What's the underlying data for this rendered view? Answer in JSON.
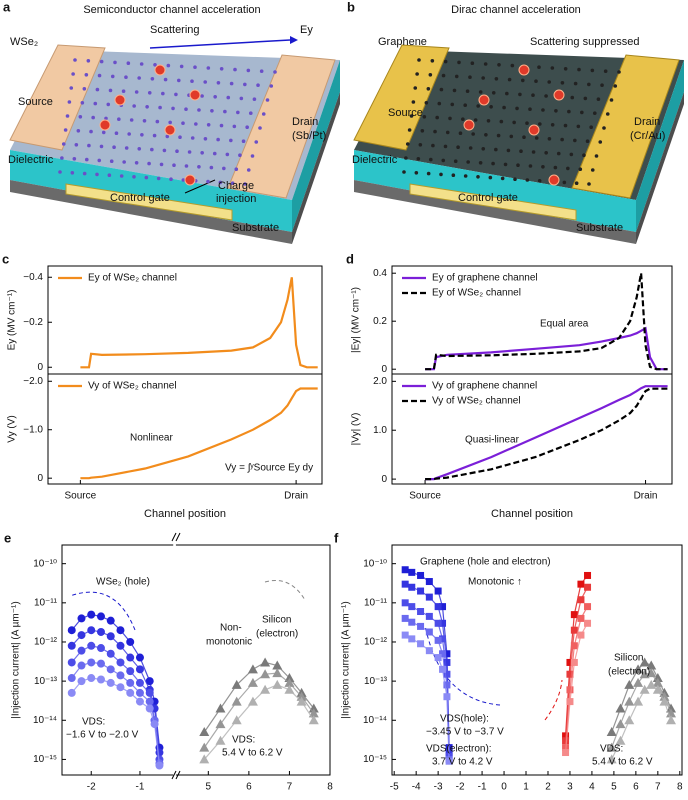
{
  "diagrams": [
    {
      "letter": "a",
      "title": "Semiconductor channel acceleration",
      "labels": [
        "WSe₂",
        "Scattering",
        "Ey",
        "Source",
        "Drain",
        "(Sb/Pt)",
        "Dielectric",
        "Charge",
        "injection",
        "Control gate",
        "Substrate"
      ]
    },
    {
      "letter": "b",
      "title": "Dirac channel acceleration",
      "labels": [
        "Graphene",
        "Scattering suppressed",
        "Source",
        "Drain",
        "(Cr/Au)",
        "Dielectric",
        "Control gate",
        "Substrate"
      ]
    }
  ],
  "chart_data": [
    {
      "type": "line",
      "letter": "c",
      "ylabel": "Ey (MV cm⁻¹)",
      "legend": "top-left",
      "x": [
        0,
        0.02,
        0.04,
        0.05,
        0.1,
        0.3,
        0.5,
        0.7,
        0.8,
        0.88,
        0.93,
        0.96,
        0.98,
        1.0,
        1.02,
        1.05,
        1.1
      ],
      "xlim": [
        -0.15,
        1.12
      ],
      "ylim": [
        0.03,
        -0.45
      ],
      "yticks": [
        0,
        {
          "value": -0.2,
          "label": "−0.2"
        },
        {
          "value": -0.4,
          "label": "−0.4"
        }
      ],
      "series": [
        {
          "name": "Ey of WSe₂ channel",
          "color": "#f28c1c",
          "values": [
            0,
            0,
            0,
            -0.06,
            -0.055,
            -0.058,
            -0.064,
            -0.074,
            -0.088,
            -0.13,
            -0.2,
            -0.3,
            -0.4,
            -0.1,
            -0.01,
            0,
            0
          ]
        }
      ]
    },
    {
      "type": "line",
      "ylabel": "Vy (V)",
      "xlabel": "Channel position",
      "legend": "top-left",
      "x": [
        0,
        0.02,
        0.04,
        0.05,
        0.1,
        0.3,
        0.5,
        0.7,
        0.8,
        0.88,
        0.93,
        0.96,
        0.98,
        1.0,
        1.02,
        1.05,
        1.1
      ],
      "xlim": [
        -0.15,
        1.12
      ],
      "xticks": [
        {
          "value": 0,
          "label": "Source"
        },
        {
          "value": 1,
          "label": "Drain"
        }
      ],
      "ylim": [
        0.12,
        -2.15
      ],
      "yticks": [
        0,
        {
          "value": -1,
          "label": "−1.0"
        },
        {
          "value": -2,
          "label": "−2.0"
        }
      ],
      "annotations": [
        "Nonlinear",
        "Vy = ∫ʸSource Ey dy"
      ],
      "series": [
        {
          "name": "Vy of WSe₂ channel",
          "color": "#f28c1c",
          "values": [
            0,
            0,
            0,
            -0.01,
            -0.03,
            -0.2,
            -0.45,
            -0.8,
            -1.0,
            -1.2,
            -1.35,
            -1.5,
            -1.65,
            -1.8,
            -1.85,
            -1.85,
            -1.85
          ]
        }
      ]
    },
    {
      "type": "line",
      "letter": "d",
      "ylabel": "|Ey| (MV cm⁻¹)",
      "legend": "top-left",
      "x": [
        0,
        0.02,
        0.04,
        0.05,
        0.1,
        0.3,
        0.5,
        0.7,
        0.8,
        0.88,
        0.93,
        0.96,
        0.98,
        1.0,
        1.02,
        1.05,
        1.1
      ],
      "xlim": [
        -0.15,
        1.12
      ],
      "ylim": [
        -0.02,
        0.43
      ],
      "yticks": [
        0,
        0.2,
        0.4
      ],
      "annotations": [
        "Equal area"
      ],
      "series": [
        {
          "name": "Ey of graphene channel",
          "color": "#7b1fd8",
          "dash": false,
          "values": [
            0,
            0,
            0,
            0.05,
            0.06,
            0.07,
            0.085,
            0.1,
            0.115,
            0.13,
            0.14,
            0.15,
            0.16,
            0.17,
            0.05,
            0,
            0
          ]
        },
        {
          "name": "Ey of WSe₂ channel",
          "color": "#000000",
          "dash": true,
          "values": [
            0,
            0,
            0,
            0.06,
            0.055,
            0.058,
            0.064,
            0.074,
            0.088,
            0.13,
            0.2,
            0.3,
            0.4,
            0.1,
            0.01,
            0,
            0
          ]
        }
      ]
    },
    {
      "type": "line",
      "ylabel": "|Vy| (V)",
      "xlabel": "Channel position",
      "legend": "top-left",
      "x": [
        0,
        0.02,
        0.04,
        0.05,
        0.1,
        0.3,
        0.5,
        0.7,
        0.8,
        0.88,
        0.93,
        0.96,
        0.98,
        1.0,
        1.02,
        1.05,
        1.1
      ],
      "xlim": [
        -0.15,
        1.12
      ],
      "xticks": [
        {
          "value": 0,
          "label": "Source"
        },
        {
          "value": 1,
          "label": "Drain"
        }
      ],
      "ylim": [
        -0.1,
        2.15
      ],
      "yticks": [
        0,
        {
          "value": 1,
          "label": "1.0"
        },
        {
          "value": 2,
          "label": "2.0"
        }
      ],
      "annotations": [
        "Quasi-linear"
      ],
      "series": [
        {
          "name": "Vy of graphene channel",
          "color": "#7b1fd8",
          "dash": false,
          "values": [
            0,
            0,
            0,
            0.02,
            0.1,
            0.45,
            0.85,
            1.25,
            1.45,
            1.62,
            1.72,
            1.8,
            1.86,
            1.9,
            1.9,
            1.9,
            1.9
          ]
        },
        {
          "name": "Vy of WSe₂ channel",
          "color": "#000000",
          "dash": true,
          "values": [
            0,
            0,
            0,
            0.01,
            0.03,
            0.2,
            0.45,
            0.8,
            1.0,
            1.2,
            1.35,
            1.5,
            1.65,
            1.8,
            1.85,
            1.85,
            1.85
          ]
        }
      ]
    },
    {
      "type": "scatter",
      "letter": "e",
      "log_y": true,
      "ylabel": "|Injection current| (A µm⁻¹)",
      "xlabel": "VGS − Vth (V)",
      "xlim": [
        -2.6,
        8
      ],
      "xbreak": [
        -0.4,
        4.3
      ],
      "xticks": [
        -2,
        -1,
        5,
        6,
        7,
        8
      ],
      "ylim": [
        4e-16,
        3e-10
      ],
      "yticks": [
        {
          "value": 1e-15,
          "label": "10⁻¹⁵"
        },
        {
          "value": 1e-14,
          "label": "10⁻¹⁴"
        },
        {
          "value": 1e-13,
          "label": "10⁻¹³"
        },
        {
          "value": 1e-12,
          "label": "10⁻¹²"
        },
        {
          "value": 1e-11,
          "label": "10⁻¹¹"
        },
        {
          "value": 1e-10,
          "label": "10⁻¹⁰"
        }
      ],
      "annotations": [
        "WSe₂ (hole)",
        "Non-",
        "monotonic",
        "Silicon",
        "(electron)",
        "VDS:",
        "−1.6 V to −2.0 V",
        "VDS:",
        "5.4 V to 6.2 V"
      ],
      "series": [
        {
          "marker": "circle",
          "color": "#1f1fd6",
          "x": [
            -2.4,
            -2.2,
            -2.0,
            -1.8,
            -1.6,
            -1.4,
            -1.2,
            -1.0,
            -0.8,
            -0.7,
            -0.6
          ],
          "values": [
            2e-12,
            4e-12,
            5e-12,
            4.5e-12,
            3.5e-12,
            2e-12,
            1e-12,
            4e-13,
            1e-13,
            3e-14,
            2e-15
          ]
        },
        {
          "marker": "circle",
          "color": "#3535e0",
          "x": [
            -2.4,
            -2.2,
            -2.0,
            -1.8,
            -1.6,
            -1.4,
            -1.2,
            -1.0,
            -0.8,
            -0.7,
            -0.6
          ],
          "values": [
            8e-13,
            1.5e-12,
            2e-12,
            1.8e-12,
            1.4e-12,
            8e-13,
            4e-13,
            2e-13,
            6e-14,
            2e-14,
            1.5e-15
          ]
        },
        {
          "marker": "circle",
          "color": "#4d4de8",
          "x": [
            -2.4,
            -2.2,
            -2.0,
            -1.8,
            -1.6,
            -1.4,
            -1.2,
            -1.0,
            -0.8,
            -0.7,
            -0.6
          ],
          "values": [
            3e-13,
            6e-13,
            8e-13,
            7e-13,
            5e-13,
            3e-13,
            1.8e-13,
            9e-14,
            5e-14,
            1e-14,
            1e-15
          ]
        },
        {
          "marker": "circle",
          "color": "#6a6aef",
          "x": [
            -2.4,
            -2.2,
            -2.0,
            -1.8,
            -1.6,
            -1.4,
            -1.2,
            -1.0,
            -0.8,
            -0.7,
            -0.6
          ],
          "values": [
            1.2e-13,
            2.5e-13,
            3e-13,
            2.8e-13,
            2e-13,
            1.4e-13,
            9e-14,
            5e-14,
            3e-14,
            1e-14,
            8e-16
          ]
        },
        {
          "marker": "circle",
          "color": "#8a8af5",
          "x": [
            -2.4,
            -2.2,
            -2.0,
            -1.8,
            -1.6,
            -1.4,
            -1.2,
            -1.0,
            -0.8,
            -0.7,
            -0.6
          ],
          "values": [
            5e-14,
            1e-13,
            1.2e-13,
            1.1e-13,
            9e-14,
            7e-14,
            5e-14,
            3e-14,
            2e-14,
            8e-15,
            7e-16
          ]
        },
        {
          "marker": "triangle",
          "color": "#7a7a7a",
          "x": [
            4.9,
            5.3,
            5.7,
            6.1,
            6.4,
            6.7,
            7.0,
            7.3,
            7.6
          ],
          "values": [
            5e-15,
            2e-14,
            8e-14,
            2e-13,
            3e-13,
            2.5e-13,
            1.2e-13,
            5e-14,
            2e-14
          ]
        },
        {
          "marker": "triangle",
          "color": "#959595",
          "x": [
            4.9,
            5.3,
            5.7,
            6.1,
            6.4,
            6.7,
            7.0,
            7.3,
            7.6
          ],
          "values": [
            2e-15,
            8e-15,
            3e-14,
            9e-14,
            1.5e-13,
            1.6e-13,
            9e-14,
            4e-14,
            1.5e-14
          ]
        },
        {
          "marker": "triangle",
          "color": "#b0b0b0",
          "x": [
            4.9,
            5.3,
            5.7,
            6.1,
            6.4,
            6.7,
            7.0,
            7.3,
            7.6
          ],
          "values": [
            1e-15,
            3e-15,
            1e-14,
            3e-14,
            6e-14,
            8e-14,
            6e-14,
            3e-14,
            1e-14
          ]
        }
      ]
    },
    {
      "type": "scatter",
      "letter": "f",
      "log_y": true,
      "ylabel": "|Injection current| (A µm⁻¹)",
      "xlabel": "VGS − Vth or VGS − VDirac (V)",
      "xlim": [
        -5.1,
        8.1
      ],
      "xticks": [
        -5,
        -4,
        -3,
        -2,
        -1,
        0,
        1,
        2,
        3,
        4,
        5,
        6,
        7,
        8
      ],
      "ylim": [
        4e-16,
        3e-10
      ],
      "yticks": [
        {
          "value": 1e-15,
          "label": "10⁻¹⁵"
        },
        {
          "value": 1e-14,
          "label": "10⁻¹⁴"
        },
        {
          "value": 1e-13,
          "label": "10⁻¹³"
        },
        {
          "value": 1e-12,
          "label": "10⁻¹²"
        },
        {
          "value": 1e-11,
          "label": "10⁻¹¹"
        },
        {
          "value": 1e-10,
          "label": "10⁻¹⁰"
        }
      ],
      "annotations": [
        "Graphene (hole and electron)",
        "Monotonic ↑",
        "Silicon",
        "(electron)",
        "VDS(hole):",
        "−3.45 V to −3.7 V",
        "VDS(electron):",
        "3.7 V to 4.2 V",
        "VDS:",
        "5.4 V to 6.2 V"
      ],
      "series": [
        {
          "marker": "square",
          "color": "#1f1fd6",
          "x": [
            -4.5,
            -4.2,
            -3.8,
            -3.4,
            -3.0,
            -2.8,
            -2.6,
            -2.5
          ],
          "values": [
            7e-11,
            6e-11,
            5e-11,
            3.5e-11,
            2e-11,
            8e-12,
            5e-13,
            2e-15
          ]
        },
        {
          "marker": "square",
          "color": "#3535e0",
          "x": [
            -4.5,
            -4.2,
            -3.8,
            -3.4,
            -3.0,
            -2.8,
            -2.6,
            -2.5
          ],
          "values": [
            3e-11,
            2.5e-11,
            2e-11,
            1.4e-11,
            8e-12,
            3e-12,
            3e-13,
            1.5e-15
          ]
        },
        {
          "marker": "square",
          "color": "#4d4de8",
          "x": [
            -4.5,
            -4.2,
            -3.8,
            -3.4,
            -3.0,
            -2.8,
            -2.6,
            -2.5
          ],
          "values": [
            1e-11,
            8e-12,
            6e-12,
            4.5e-12,
            3e-12,
            1.2e-12,
            1.5e-13,
            1.2e-15
          ]
        },
        {
          "marker": "square",
          "color": "#6a6aef",
          "x": [
            -4.5,
            -4.2,
            -3.8,
            -3.4,
            -3.0,
            -2.8,
            -2.6,
            -2.5
          ],
          "values": [
            4e-12,
            3.2e-12,
            2.5e-12,
            1.8e-12,
            1.1e-12,
            5e-13,
            8e-14,
            1e-15
          ]
        },
        {
          "marker": "square",
          "color": "#8a8af5",
          "x": [
            -4.5,
            -4.2,
            -3.8,
            -3.4,
            -3.0,
            -2.8,
            -2.6,
            -2.5
          ],
          "values": [
            1.5e-12,
            1.2e-12,
            9e-13,
            6e-13,
            4e-13,
            2e-13,
            4e-14,
            9e-16
          ]
        },
        {
          "marker": "square",
          "color": "#e01010",
          "x": [
            2.8,
            3.0,
            3.2,
            3.5,
            3.8
          ],
          "values": [
            4e-15,
            3e-13,
            5e-12,
            3e-11,
            5e-11
          ]
        },
        {
          "marker": "square",
          "color": "#e83a3a",
          "x": [
            2.8,
            3.0,
            3.2,
            3.5,
            3.8
          ],
          "values": [
            3e-15,
            1.5e-13,
            2e-12,
            1.2e-11,
            2.5e-11
          ]
        },
        {
          "marker": "square",
          "color": "#f06060",
          "x": [
            2.8,
            3.0,
            3.2,
            3.5,
            3.8
          ],
          "values": [
            2e-15,
            6e-14,
            8e-13,
            4e-12,
            8e-12
          ]
        },
        {
          "marker": "square",
          "color": "#f58a8a",
          "x": [
            2.8,
            3.0,
            3.2,
            3.5,
            3.8
          ],
          "values": [
            1.5e-15,
            3e-14,
            3e-13,
            1.5e-12,
            3e-12
          ]
        },
        {
          "marker": "triangle",
          "color": "#7a7a7a",
          "x": [
            4.9,
            5.3,
            5.7,
            6.1,
            6.4,
            6.7,
            7.0,
            7.3,
            7.6
          ],
          "values": [
            5e-15,
            2e-14,
            8e-14,
            2e-13,
            3e-13,
            2.5e-13,
            1.2e-13,
            5e-14,
            2e-14
          ]
        },
        {
          "marker": "triangle",
          "color": "#959595",
          "x": [
            4.9,
            5.3,
            5.7,
            6.1,
            6.4,
            6.7,
            7.0,
            7.3,
            7.6
          ],
          "values": [
            2e-15,
            8e-15,
            3e-14,
            9e-14,
            1.5e-13,
            1.6e-13,
            9e-14,
            4e-14,
            1.5e-14
          ]
        },
        {
          "marker": "triangle",
          "color": "#b0b0b0",
          "x": [
            4.9,
            5.3,
            5.7,
            6.1,
            6.4,
            6.7,
            7.0,
            7.3,
            7.6
          ],
          "values": [
            1e-15,
            3e-15,
            1e-14,
            3e-14,
            6e-14,
            8e-14,
            6e-14,
            3e-14,
            1e-14
          ]
        }
      ]
    }
  ]
}
